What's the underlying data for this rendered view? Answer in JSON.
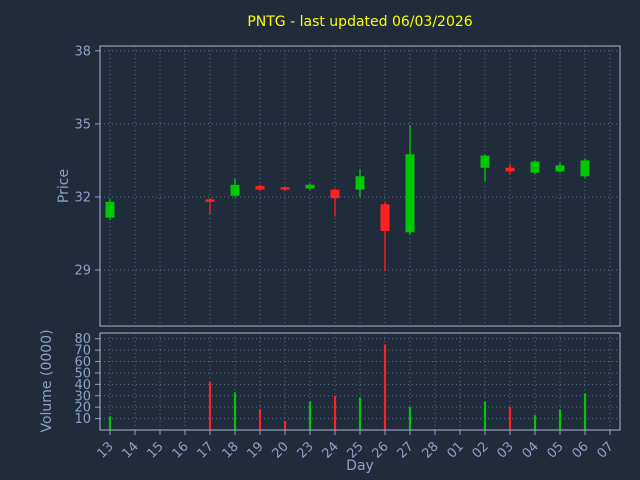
{
  "colors": {
    "background": "#202b3c",
    "title": "#ffff00",
    "axis_text": "#8aa2c8",
    "grid": "#5e7391",
    "spine": "#aab8cc",
    "up": "#00c800",
    "down": "#ff2020"
  },
  "chart_data": [
    {
      "type": "candlestick",
      "title": "PNTG - last updated 06/03/2026",
      "xlabel": "Day",
      "ylabel": "Price",
      "ylim": [
        26.7,
        38.2
      ],
      "yticks": [
        29,
        32,
        35,
        38
      ],
      "grid": "dotted",
      "categories": [
        "13",
        "14",
        "15",
        "16",
        "17",
        "18",
        "19",
        "20",
        "23",
        "24",
        "25",
        "26",
        "27",
        "28",
        "01",
        "02",
        "03",
        "04",
        "05",
        "06",
        "07"
      ],
      "candles": [
        {
          "day": "13",
          "open": 31.15,
          "close": 31.8,
          "high": 31.9,
          "low": 31.05,
          "direction": "up"
        },
        {
          "day": "17",
          "open": 31.9,
          "close": 31.8,
          "high": 31.95,
          "low": 31.3,
          "direction": "down"
        },
        {
          "day": "18",
          "open": 32.05,
          "close": 32.5,
          "high": 32.75,
          "low": 32.0,
          "direction": "up"
        },
        {
          "day": "19",
          "open": 32.45,
          "close": 32.3,
          "high": 32.5,
          "low": 32.25,
          "direction": "down"
        },
        {
          "day": "20",
          "open": 32.4,
          "close": 32.3,
          "high": 32.45,
          "low": 32.25,
          "direction": "down"
        },
        {
          "day": "23",
          "open": 32.35,
          "close": 32.5,
          "high": 32.55,
          "low": 32.3,
          "direction": "up"
        },
        {
          "day": "24",
          "open": 32.3,
          "close": 31.95,
          "high": 32.35,
          "low": 31.2,
          "direction": "down"
        },
        {
          "day": "25",
          "open": 32.3,
          "close": 32.85,
          "high": 33.15,
          "low": 32.0,
          "direction": "up"
        },
        {
          "day": "26",
          "open": 31.7,
          "close": 30.6,
          "high": 31.8,
          "low": 28.95,
          "direction": "down"
        },
        {
          "day": "27",
          "open": 30.55,
          "close": 33.75,
          "high": 34.95,
          "low": 30.45,
          "direction": "up"
        },
        {
          "day": "02",
          "open": 33.2,
          "close": 33.7,
          "high": 33.75,
          "low": 32.65,
          "direction": "up"
        },
        {
          "day": "03",
          "open": 33.2,
          "close": 33.05,
          "high": 33.35,
          "low": 32.9,
          "direction": "down"
        },
        {
          "day": "04",
          "open": 33.0,
          "close": 33.45,
          "high": 33.5,
          "low": 32.95,
          "direction": "up"
        },
        {
          "day": "05",
          "open": 33.05,
          "close": 33.3,
          "high": 33.4,
          "low": 33.0,
          "direction": "up"
        },
        {
          "day": "06",
          "open": 32.85,
          "close": 33.5,
          "high": 33.55,
          "low": 32.8,
          "direction": "up"
        }
      ]
    },
    {
      "type": "bar",
      "ylabel": "Volume (0000)",
      "ylim": [
        0,
        85
      ],
      "yticks": [
        10,
        20,
        30,
        40,
        50,
        60,
        70,
        80
      ],
      "grid": "dotted",
      "bars": [
        {
          "day": "13",
          "value": 12,
          "direction": "up"
        },
        {
          "day": "17",
          "value": 42,
          "direction": "down"
        },
        {
          "day": "18",
          "value": 33,
          "direction": "up"
        },
        {
          "day": "19",
          "value": 18,
          "direction": "down"
        },
        {
          "day": "20",
          "value": 8,
          "direction": "down"
        },
        {
          "day": "23",
          "value": 25,
          "direction": "up"
        },
        {
          "day": "24",
          "value": 30,
          "direction": "down"
        },
        {
          "day": "25",
          "value": 28,
          "direction": "up"
        },
        {
          "day": "26",
          "value": 75,
          "direction": "down"
        },
        {
          "day": "27",
          "value": 20,
          "direction": "up"
        },
        {
          "day": "02",
          "value": 25,
          "direction": "up"
        },
        {
          "day": "03",
          "value": 20,
          "direction": "down"
        },
        {
          "day": "04",
          "value": 13,
          "direction": "up"
        },
        {
          "day": "05",
          "value": 18,
          "direction": "up"
        },
        {
          "day": "06",
          "value": 32,
          "direction": "up"
        }
      ]
    }
  ]
}
